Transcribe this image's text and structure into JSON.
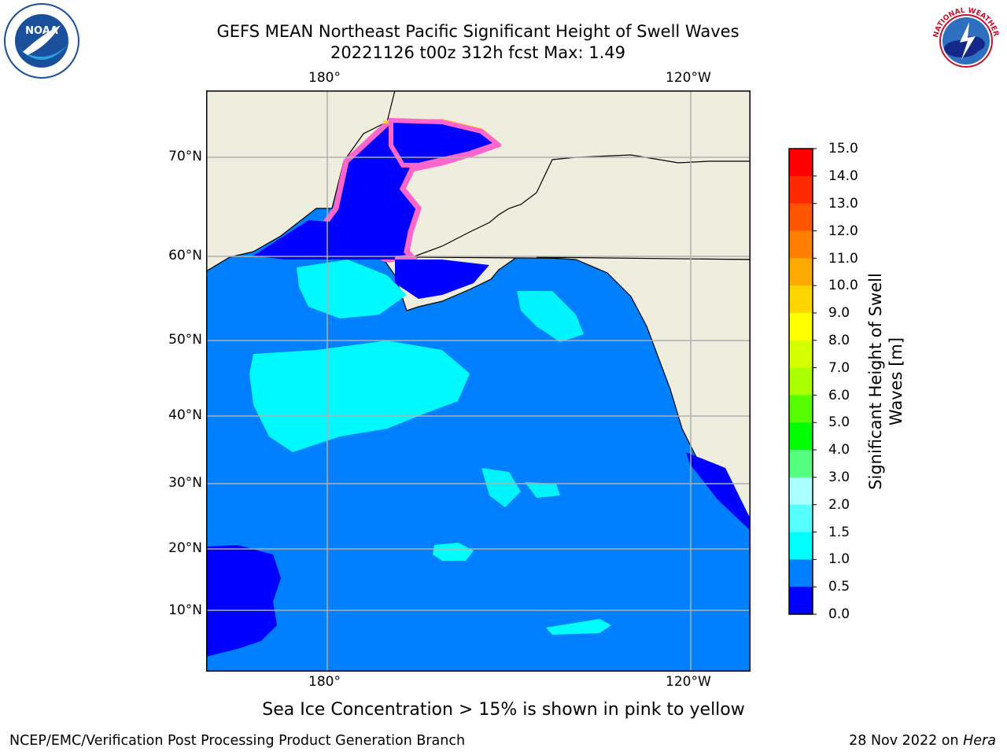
{
  "header": {
    "title_line1": "GEFS MEAN Northeast Pacific Significant Height of Swell Waves",
    "title_line2": "20221126 t00z 312h fcst   Max: 1.49"
  },
  "logos": {
    "left": "NOAA",
    "left_ring_text": "NATIONAL OCEANIC AND ATMOSPHERIC ADMINISTRATION · U.S. DEPARTMENT OF COMMERCE",
    "right_ring_text": "NATIONAL WEATHER SERVICE"
  },
  "map": {
    "lon_labels": [
      "180°",
      "120°W"
    ],
    "lat_labels": [
      "70°N",
      "60°N",
      "50°N",
      "40°N",
      "30°N",
      "20°N",
      "10°N"
    ],
    "colors": {
      "land": "#efeddd",
      "ocean": "#0080ff",
      "low": "#0000ff",
      "moderate": "#00ffff",
      "ice_pink": "#ff66cc",
      "ice_yellow": "#ffcc44",
      "grid": "#b0b0b0"
    }
  },
  "colorbar": {
    "title": "Significant Height of Swell Waves [m]",
    "ticks": [
      "15.0",
      "14.0",
      "13.0",
      "12.0",
      "11.0",
      "10.0",
      "9.0",
      "8.0",
      "7.0",
      "6.0",
      "5.0",
      "4.0",
      "3.0",
      "2.0",
      "1.5",
      "1.0",
      "0.5",
      "0.0"
    ],
    "colors_top_to_bottom": [
      "#ff0000",
      "#ff2a00",
      "#ff5500",
      "#ff7f00",
      "#ffaa00",
      "#ffd400",
      "#ffff00",
      "#d4ff00",
      "#aaff00",
      "#55ff00",
      "#00ff00",
      "#55ff7f",
      "#aaffff",
      "#55ffff",
      "#00ffff",
      "#0080ff",
      "#0000ff"
    ]
  },
  "caption": "Sea Ice Concentration > 15% is shown in pink to yellow",
  "footer": {
    "left": "NCEP/EMC/Verification Post Processing Product Generation Branch",
    "date": "28 Nov 2022 on ",
    "machine": "Hera"
  }
}
